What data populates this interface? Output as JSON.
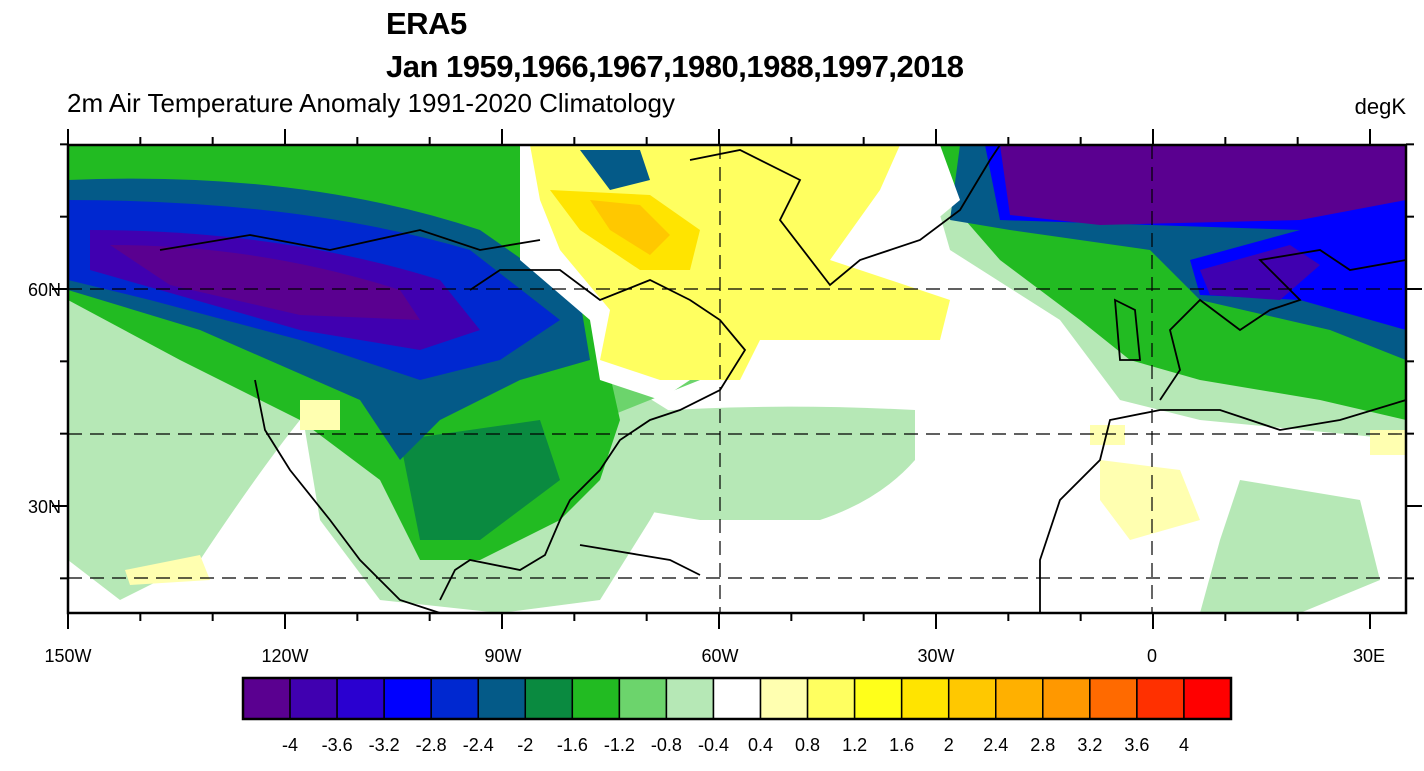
{
  "title": "ERA5",
  "subtitle": "Jan 1959,1966,1967,1980,1988,1997,2018",
  "left_string": "2m Air Temperature Anomaly  1991-2020 Climatology",
  "units": "degK",
  "chart_data": {
    "type": "filled-contour-map",
    "projection": "cylindrical equidistant",
    "lon_range": [
      -150,
      35
    ],
    "lat_range": [
      15,
      80
    ],
    "x_tick_labels": [
      "150W",
      "120W",
      "90W",
      "60W",
      "30W",
      "0",
      "30E"
    ],
    "y_tick_labels": [
      "60N",
      "30N"
    ],
    "grid": "dashed lines at 60W, 0, 60N, 40N, 20N",
    "colorbar": {
      "placement": "bottom",
      "levels": [
        "-4",
        "-3.6",
        "-3.2",
        "-2.8",
        "-2.4",
        "-2",
        "-1.6",
        "-1.2",
        "-0.8",
        "-0.4",
        "0.4",
        "0.8",
        "1.2",
        "1.6",
        "2",
        "2.4",
        "2.8",
        "3.2",
        "3.6",
        "4"
      ],
      "colors": [
        "#5a0090",
        "#4000b0",
        "#2a00d0",
        "#0000ff",
        "#0028d0",
        "#045a88",
        "#0a8a40",
        "#22bb22",
        "#6cd46c",
        "#b6e8b6",
        "#ffffff",
        "#ffffb0",
        "#ffff60",
        "#ffff1a",
        "#ffe400",
        "#ffc800",
        "#ffb000",
        "#ff9800",
        "#ff6a00",
        "#ff3000",
        "#ff0000"
      ]
    }
  }
}
